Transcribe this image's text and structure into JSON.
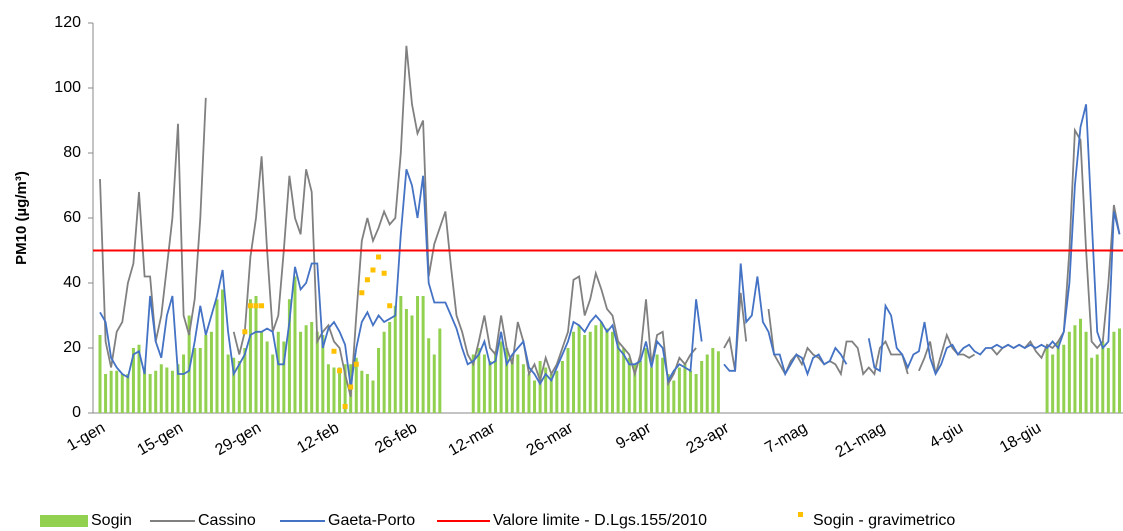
{
  "chart_data": {
    "type": "combo",
    "y_label": "PM10 (µg/m³)",
    "ylim": [
      0,
      120
    ],
    "yticks": [
      0,
      20,
      40,
      60,
      80,
      100,
      120
    ],
    "grid": false,
    "categories": [
      "1-gen",
      null,
      null,
      null,
      null,
      null,
      null,
      null,
      null,
      null,
      null,
      null,
      null,
      null,
      "15-gen",
      null,
      null,
      null,
      null,
      null,
      null,
      null,
      null,
      null,
      null,
      null,
      null,
      null,
      "29-gen",
      null,
      null,
      null,
      null,
      null,
      null,
      null,
      null,
      null,
      null,
      null,
      null,
      null,
      "12-feb",
      null,
      null,
      null,
      null,
      null,
      null,
      null,
      null,
      null,
      null,
      null,
      null,
      null,
      "26-feb",
      null,
      null,
      null,
      null,
      null,
      null,
      null,
      null,
      null,
      null,
      null,
      null,
      null,
      "12-mar",
      null,
      null,
      null,
      null,
      null,
      null,
      null,
      null,
      null,
      null,
      null,
      null,
      null,
      "26-mar",
      null,
      null,
      null,
      null,
      null,
      null,
      null,
      null,
      null,
      null,
      null,
      null,
      null,
      "9-apr",
      null,
      null,
      null,
      null,
      null,
      null,
      null,
      null,
      null,
      null,
      null,
      null,
      null,
      "23-apr",
      null,
      null,
      null,
      null,
      null,
      null,
      null,
      null,
      null,
      null,
      null,
      null,
      null,
      "7-mag",
      null,
      null,
      null,
      null,
      null,
      null,
      null,
      null,
      null,
      null,
      null,
      null,
      null,
      "21-mag",
      null,
      null,
      null,
      null,
      null,
      null,
      null,
      null,
      null,
      null,
      null,
      null,
      null,
      "4-giu",
      null,
      null,
      null,
      null,
      null,
      null,
      null,
      null,
      null,
      null,
      null,
      null,
      null,
      "18-giu",
      null,
      null,
      null,
      null,
      null,
      null,
      null,
      null,
      null,
      null,
      null,
      null,
      null,
      null,
      null
    ],
    "series": [
      {
        "name": "Sogin",
        "kind": "bar",
        "color": "#92d050",
        "values": [
          24,
          12,
          13,
          13,
          12,
          12,
          20,
          21,
          14,
          12,
          13,
          15,
          14,
          13,
          15,
          18,
          30,
          20,
          20,
          24,
          25,
          35,
          38,
          18,
          17,
          16,
          20,
          35,
          36,
          25,
          22,
          18,
          25,
          22,
          35,
          42,
          25,
          27,
          28,
          25,
          24,
          15,
          14,
          14,
          15,
          15,
          17,
          13,
          12,
          10,
          20,
          25,
          28,
          33,
          36,
          32,
          30,
          36,
          36,
          23,
          18,
          26,
          null,
          null,
          null,
          null,
          null,
          18,
          20,
          18,
          16,
          19,
          22,
          20,
          17,
          18,
          15,
          12,
          10,
          16,
          14,
          12,
          13,
          16,
          20,
          25,
          27,
          24,
          25,
          27,
          28,
          26,
          25,
          22,
          20,
          17,
          15,
          16,
          20,
          14,
          18,
          17,
          12,
          10,
          14,
          15,
          13,
          12,
          16,
          18,
          20,
          19,
          null,
          null,
          null,
          null,
          null,
          null,
          null,
          null,
          null,
          null,
          null,
          null,
          null,
          null,
          null,
          null,
          null,
          null,
          null,
          null,
          null,
          null,
          null,
          null,
          null,
          null,
          null,
          null,
          null,
          null,
          null,
          null,
          null,
          null,
          null,
          null,
          null,
          null,
          null,
          null,
          null,
          null,
          null,
          null,
          null,
          null,
          null,
          null,
          null,
          null,
          null,
          null,
          null,
          null,
          null,
          null,
          null,
          null,
          20,
          18,
          22,
          21,
          25,
          27,
          29,
          25,
          17,
          18,
          22,
          20,
          25,
          26
        ]
      },
      {
        "name": "Cassino",
        "kind": "line",
        "color": "#808080",
        "values": [
          72,
          22,
          14,
          25,
          28,
          40,
          46,
          68,
          42,
          42,
          22,
          30,
          45,
          60,
          89,
          30,
          24,
          35,
          60,
          97,
          null,
          null,
          null,
          null,
          25,
          18,
          25,
          48,
          60,
          79,
          50,
          25,
          30,
          50,
          73,
          60,
          55,
          75,
          68,
          22,
          25,
          27,
          22,
          20,
          12,
          5,
          30,
          53,
          60,
          53,
          57,
          62,
          58,
          60,
          80,
          113,
          95,
          86,
          90,
          42,
          52,
          57,
          62,
          45,
          30,
          25,
          18,
          15,
          22,
          30,
          20,
          18,
          30,
          20,
          15,
          28,
          22,
          12,
          15,
          10,
          17,
          12,
          15,
          20,
          25,
          41,
          42,
          30,
          35,
          43,
          38,
          32,
          30,
          22,
          20,
          18,
          12,
          18,
          35,
          15,
          24,
          25,
          9,
          12,
          17,
          15,
          18,
          20,
          null,
          null,
          null,
          null,
          20,
          23,
          13,
          37,
          22,
          null,
          null,
          null,
          32,
          18,
          15,
          12,
          16,
          18,
          15,
          20,
          18,
          17,
          15,
          16,
          15,
          12,
          22,
          22,
          20,
          12,
          14,
          12,
          20,
          22,
          18,
          18,
          18,
          12,
          null,
          13,
          17,
          22,
          12,
          18,
          24,
          20,
          18,
          18,
          17,
          18,
          null,
          null,
          20,
          18,
          20,
          21,
          20,
          21,
          20,
          22,
          19,
          17,
          21,
          20,
          22,
          25,
          50,
          87,
          84,
          50,
          22,
          20,
          22,
          40,
          64,
          55
        ]
      },
      {
        "name": "Gaeta-Porto",
        "kind": "line",
        "color": "#4472c4",
        "values": [
          31,
          28,
          17,
          14,
          12,
          11,
          18,
          19,
          12,
          36,
          22,
          17,
          30,
          36,
          12,
          12,
          13,
          22,
          33,
          24,
          30,
          36,
          44,
          25,
          12,
          15,
          18,
          24,
          25,
          25,
          26,
          25,
          15,
          15,
          28,
          45,
          38,
          40,
          46,
          46,
          20,
          26,
          28,
          25,
          21,
          8,
          20,
          28,
          31,
          27,
          30,
          28,
          29,
          30,
          55,
          75,
          70,
          60,
          73,
          40,
          34,
          34,
          34,
          30,
          26,
          20,
          15,
          16,
          18,
          22,
          15,
          16,
          25,
          15,
          18,
          20,
          22,
          14,
          12,
          9,
          12,
          10,
          14,
          18,
          22,
          28,
          27,
          25,
          28,
          30,
          28,
          25,
          27,
          20,
          18,
          15,
          15,
          16,
          22,
          14,
          22,
          20,
          10,
          13,
          15,
          14,
          13,
          35,
          22,
          null,
          null,
          null,
          15,
          13,
          13,
          46,
          28,
          30,
          42,
          28,
          25,
          18,
          18,
          12,
          15,
          18,
          17,
          12,
          17,
          18,
          15,
          16,
          20,
          18,
          15,
          null,
          null,
          null,
          23,
          14,
          13,
          33,
          30,
          20,
          18,
          14,
          18,
          19,
          28,
          17,
          12,
          15,
          20,
          21,
          18,
          20,
          21,
          19,
          18,
          20,
          20,
          21,
          20,
          21,
          20,
          21,
          20,
          21,
          20,
          21,
          20,
          22,
          20,
          25,
          40,
          70,
          88,
          95,
          60,
          25,
          20,
          22,
          62,
          55
        ]
      },
      {
        "name": "Sogin - gravimetrico",
        "kind": "scatter",
        "color": "#ffc000",
        "values": [
          null,
          null,
          null,
          null,
          null,
          null,
          null,
          null,
          null,
          null,
          null,
          null,
          null,
          null,
          null,
          null,
          null,
          null,
          null,
          null,
          null,
          null,
          null,
          null,
          null,
          null,
          25,
          33,
          33,
          33,
          null,
          null,
          null,
          null,
          null,
          null,
          null,
          null,
          null,
          null,
          null,
          null,
          19,
          13,
          2,
          8,
          15,
          37,
          41,
          44,
          48,
          43,
          33,
          null,
          null,
          null,
          null,
          null,
          null,
          null,
          null,
          null,
          null,
          null,
          null,
          null,
          null,
          null,
          null,
          null,
          null,
          null,
          null,
          null,
          null,
          null,
          null,
          null,
          null,
          null,
          null,
          null,
          null,
          null,
          null,
          null,
          null,
          null,
          null,
          null,
          null,
          null,
          null,
          null,
          null,
          null,
          null,
          null,
          null,
          null,
          null,
          null,
          null,
          null,
          null,
          null,
          null,
          null,
          null,
          null,
          null,
          null,
          null,
          null,
          null,
          null,
          null,
          null,
          null,
          null,
          null,
          null,
          null,
          null,
          null,
          null,
          null,
          null,
          null,
          null,
          null,
          null,
          null,
          null,
          null,
          null,
          null,
          null,
          null,
          null,
          null,
          null,
          null,
          null,
          null,
          null,
          null,
          null,
          null,
          null,
          null,
          null,
          null,
          null,
          null,
          null,
          null,
          null,
          null,
          null,
          null,
          null,
          null,
          null,
          null,
          null,
          null,
          null,
          null,
          null,
          null,
          null,
          null,
          null,
          null,
          null,
          null,
          null,
          null,
          null,
          null,
          null,
          null,
          null
        ]
      }
    ],
    "limit": {
      "name": "Valore limite - D.Lgs.155/2010",
      "value": 50,
      "color": "#ff0000"
    }
  }
}
